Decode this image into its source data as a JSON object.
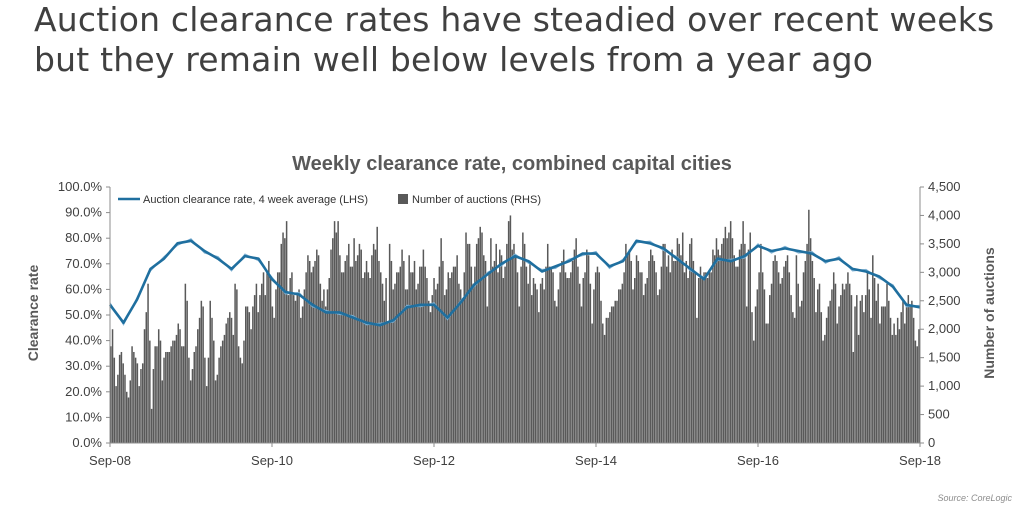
{
  "headline": {
    "line1": "Auction clearance rates have steadied over recent weeks",
    "line2": "but they remain well below levels from a year ago"
  },
  "source": "Source: CoreLogic",
  "colors": {
    "line": "#1f6f9f",
    "line_light": "#7fb1d3",
    "bars": "#595959",
    "text": "#404040"
  },
  "chart_data": {
    "type": "bar",
    "title": "Weekly clearance rate, combined capital cities",
    "ylabel": "Clearance rate",
    "y2label": "Number of auctions",
    "legend": [
      "Auction clearance rate, 4 week average (LHS)",
      "Number of auctions (RHS)"
    ],
    "legend_placement": "top-left",
    "x_ticks": [
      "Sep-08",
      "Sep-10",
      "Sep-12",
      "Sep-14",
      "Sep-16",
      "Sep-18"
    ],
    "y_ticks": [
      "0.0%",
      "10.0%",
      "20.0%",
      "30.0%",
      "40.0%",
      "50.0%",
      "60.0%",
      "70.0%",
      "80.0%",
      "90.0%",
      "100.0%"
    ],
    "y2_ticks": [
      "0",
      "500",
      "1,000",
      "1,500",
      "2,000",
      "2,500",
      "3,000",
      "3,500",
      "4,000",
      "4,500"
    ],
    "ylim": [
      0,
      100
    ],
    "y2lim": [
      0,
      4500
    ],
    "xlim": [
      "Sep-08",
      "Sep-18"
    ],
    "grid": false,
    "series": [
      {
        "name": "Auction clearance rate, 4 week average (LHS)",
        "axis": "left",
        "type": "line",
        "x": [
          "Sep-08",
          "Nov-08",
          "Jan-09",
          "Mar-09",
          "May-09",
          "Jul-09",
          "Sep-09",
          "Nov-09",
          "Jan-10",
          "Mar-10",
          "May-10",
          "Jul-10",
          "Sep-10",
          "Nov-10",
          "Jan-11",
          "Mar-11",
          "May-11",
          "Jul-11",
          "Sep-11",
          "Nov-11",
          "Jan-12",
          "Mar-12",
          "May-12",
          "Jul-12",
          "Sep-12",
          "Nov-12",
          "Jan-13",
          "Mar-13",
          "May-13",
          "Jul-13",
          "Sep-13",
          "Nov-13",
          "Jan-14",
          "Mar-14",
          "May-14",
          "Jul-14",
          "Sep-14",
          "Nov-14",
          "Jan-15",
          "Mar-15",
          "May-15",
          "Jul-15",
          "Sep-15",
          "Nov-15",
          "Jan-16",
          "Mar-16",
          "May-16",
          "Jul-16",
          "Sep-16",
          "Nov-16",
          "Jan-17",
          "Mar-17",
          "May-17",
          "Jul-17",
          "Sep-17",
          "Nov-17",
          "Jan-18",
          "Mar-18",
          "May-18",
          "Jul-18",
          "Sep-18"
        ],
        "values": [
          54,
          47,
          56,
          68,
          72,
          78,
          79,
          75,
          72,
          68,
          73,
          72,
          64,
          59,
          58,
          54,
          51,
          51,
          49,
          47,
          46,
          48,
          53,
          54,
          54,
          49,
          55,
          62,
          66,
          70,
          73,
          71,
          67,
          69,
          71,
          74,
          74,
          69,
          71,
          79,
          78,
          76,
          72,
          68,
          64,
          72,
          71,
          73,
          77,
          75,
          76,
          75,
          74,
          71,
          72,
          68,
          67,
          65,
          61,
          54,
          53
        ]
      },
      {
        "name": "Number of auctions (RHS)",
        "axis": "right",
        "type": "bar",
        "x_range": [
          "Sep-08",
          "Sep-18"
        ],
        "values": [
          1700,
          2000,
          1500,
          1000,
          1200,
          1550,
          1600,
          1400,
          1200,
          900,
          800,
          1100,
          1700,
          1600,
          1500,
          1400,
          1000,
          1300,
          1400,
          2000,
          2300,
          2800,
          1800,
          600,
          1300,
          1700,
          1700,
          2000,
          1800,
          1100,
          1500,
          1600,
          1600,
          1600,
          1700,
          1800,
          1800,
          1900,
          2100,
          2000,
          1700,
          1700,
          2800,
          2500,
          1500,
          1100,
          1300,
          1600,
          1700,
          2000,
          2200,
          2500,
          2400,
          1500,
          1000,
          1500,
          2500,
          2200,
          1800,
          1100,
          1200,
          1500,
          1700,
          1800,
          1900,
          2100,
          2200,
          2300,
          2200,
          1900,
          2800,
          2700,
          1700,
          1500,
          1400,
          1800,
          2400,
          2400,
          2300,
          2000,
          2400,
          2600,
          2800,
          2300,
          2600,
          2800,
          3000,
          2600,
          3000,
          3200,
          2900,
          2400,
          2200,
          2700,
          3000,
          3000,
          3500,
          3700,
          3600,
          3900,
          2600,
          2900,
          3000,
          2600,
          2500,
          2600,
          2700,
          2200,
          2400,
          2700,
          3000,
          3300,
          3200,
          3000,
          3100,
          3200,
          3400,
          3300,
          2800,
          2500,
          2700,
          2400,
          2700,
          2900,
          3400,
          3600,
          3900,
          3700,
          3900,
          3300,
          3000,
          3000,
          3200,
          3300,
          3500,
          3100,
          3100,
          3600,
          3200,
          3300,
          3500,
          3400,
          2900,
          3000,
          3200,
          3000,
          2900,
          3300,
          3500,
          3400,
          3800,
          3200,
          3000,
          2800,
          2500,
          2900,
          2100,
          3500,
          3200,
          2700,
          2800,
          3000,
          3000,
          3100,
          3400,
          3200,
          2700,
          2700,
          3300,
          3000,
          3000,
          3200,
          2700,
          2800,
          3100,
          3100,
          3400,
          3100,
          2900,
          2500,
          2300,
          2600,
          2900,
          2700,
          2800,
          3100,
          3600,
          3200,
          2600,
          2700,
          3000,
          2900,
          3000,
          3100,
          3100,
          3300,
          2800,
          2700,
          2500,
          3000,
          3700,
          3500,
          3500,
          3100,
          2800,
          3100,
          3500,
          3600,
          3800,
          3700,
          3300,
          3200,
          2400,
          3000,
          3600,
          3100,
          3200,
          3500,
          3000,
          3400,
          3300,
          2900,
          3100,
          3500,
          3900,
          4000,
          3400,
          3500,
          3300,
          3000,
          2400,
          3100,
          3700,
          3500,
          3100,
          2800,
          3200,
          2600,
          2900,
          2800,
          2700,
          2300,
          2800,
          2900,
          2700,
          3100,
          3500,
          3100,
          3100,
          3000,
          2500,
          2400,
          2700,
          3000,
          3200,
          3400,
          3000,
          2900,
          2900,
          3000,
          3200,
          3400,
          3600,
          3100,
          2800,
          2400,
          2900,
          3000,
          3400,
          3300,
          2800,
          2100,
          2700,
          3000,
          3100,
          3000,
          2500,
          2100,
          1900,
          2200,
          2200,
          2300,
          2400,
          2400,
          2500,
          2500,
          2700,
          2700,
          2800,
          3000,
          3500,
          3300,
          3400,
          3200,
          2700,
          2900,
          3300,
          3200,
          3000,
          3000,
          2600,
          2800,
          2900,
          3200,
          3400,
          3300,
          3200,
          3000,
          2600,
          2700,
          3100,
          3500,
          3500,
          3100,
          3300,
          3000,
          3400,
          3200,
          3200,
          3600,
          3500,
          3300,
          3700,
          3000,
          3200,
          2900,
          3500,
          3600,
          3200,
          3000,
          2200,
          2900,
          3100,
          2900,
          3000,
          3000,
          2900,
          3000,
          3000,
          3400,
          3300,
          3600,
          3400,
          3300,
          3500,
          3600,
          3800,
          3600,
          3700,
          3900,
          3600,
          3300,
          3100,
          3100,
          3400,
          3500,
          3900,
          3500,
          2400,
          3400,
          3700,
          2300,
          1800,
          2400,
          2700,
          3000,
          3500,
          3000,
          2700,
          2100,
          2100,
          2600,
          2800,
          3200,
          3300,
          3200,
          3000,
          2800,
          2900,
          3100,
          3200,
          3300,
          3000,
          2600,
          2300,
          2200,
          3300,
          2800,
          2400,
          2500,
          3000,
          3200,
          3500,
          4100,
          3600,
          3200,
          2900,
          2300,
          2700,
          2800,
          2300,
          1800,
          1900,
          2200,
          2400,
          2500,
          2700,
          3000,
          2800,
          2100,
          2400,
          2600,
          2800,
          2700,
          2800,
          3000,
          2800,
          2600,
          1600,
          2400,
          2600,
          1900,
          2500,
          2600,
          2300,
          2600,
          3000,
          2700,
          2200,
          3300,
          2900,
          2500,
          2800,
          2100,
          2400,
          2400,
          2400,
          2800,
          2500,
          2200,
          1900,
          2100,
          1900,
          2200,
          2000,
          2300,
          2500,
          2100,
          2400,
          2600,
          2400,
          2500,
          2200,
          1800,
          1700,
          2000
        ]
      }
    ]
  }
}
